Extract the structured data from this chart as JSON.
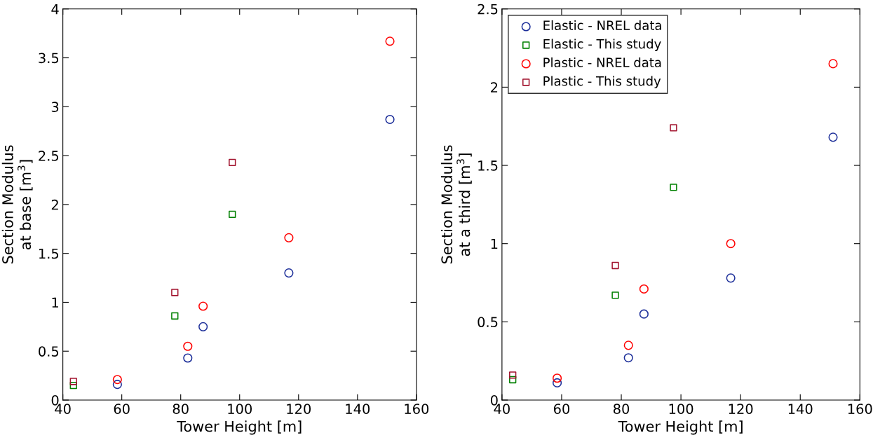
{
  "chart_data": [
    {
      "type": "scatter",
      "xlabel": "Tower Height [m]",
      "ylabel": "Section Modulus\nat base [m$^{3}$]",
      "xlim": [
        40,
        160
      ],
      "xticks": [
        40,
        60,
        80,
        100,
        120,
        140,
        160
      ],
      "ylim": [
        0,
        4
      ],
      "yticks": [
        0,
        0.5,
        1,
        1.5,
        2,
        2.5,
        3,
        3.5,
        4
      ],
      "grid": false,
      "legend": false,
      "series": [
        {
          "color": "#1c2e99",
          "marker": "circle",
          "x": [
            58.5,
            82.4,
            87.6,
            116.7,
            151
          ],
          "values": [
            0.16,
            0.43,
            0.75,
            1.3,
            2.87
          ]
        },
        {
          "color": "#008000",
          "marker": "square",
          "x": [
            43.6,
            78,
            97.5
          ],
          "values": [
            0.15,
            0.86,
            1.9
          ]
        },
        {
          "color": "#ff0000",
          "marker": "circle",
          "x": [
            58.5,
            82.4,
            87.6,
            116.7,
            151
          ],
          "values": [
            0.21,
            0.55,
            0.96,
            1.66,
            3.67
          ]
        },
        {
          "color": "#a2142f",
          "marker": "square",
          "x": [
            43.6,
            78,
            97.5
          ],
          "values": [
            0.19,
            1.1,
            2.43
          ]
        }
      ]
    },
    {
      "type": "scatter",
      "xlabel": "Tower Height [m]",
      "ylabel": "Section Modulus\nat a third [m$^{3}$]",
      "xlim": [
        40,
        160
      ],
      "xticks": [
        40,
        60,
        80,
        100,
        120,
        140,
        160
      ],
      "ylim": [
        0,
        2.5
      ],
      "yticks": [
        0,
        0.5,
        1,
        1.5,
        2,
        2.5
      ],
      "grid": false,
      "legend": "top left",
      "series": [
        {
          "name": "Elastic - NREL data",
          "color": "#1c2e99",
          "marker": "circle",
          "x": [
            58.5,
            82.4,
            87.6,
            116.7,
            151
          ],
          "values": [
            0.11,
            0.27,
            0.55,
            0.78,
            1.68
          ]
        },
        {
          "name": "Elastic - This study",
          "color": "#008000",
          "marker": "square",
          "x": [
            43.6,
            78,
            97.5
          ],
          "values": [
            0.13,
            0.67,
            1.36
          ]
        },
        {
          "name": "Plastic - NREL data",
          "color": "#ff0000",
          "marker": "circle",
          "x": [
            58.5,
            82.4,
            87.6,
            116.7,
            151
          ],
          "values": [
            0.14,
            0.35,
            0.71,
            1.0,
            2.15
          ]
        },
        {
          "name": "Plastic - This study",
          "color": "#a2142f",
          "marker": "square",
          "x": [
            43.6,
            78,
            97.5
          ],
          "values": [
            0.16,
            0.86,
            1.74
          ]
        }
      ]
    }
  ]
}
